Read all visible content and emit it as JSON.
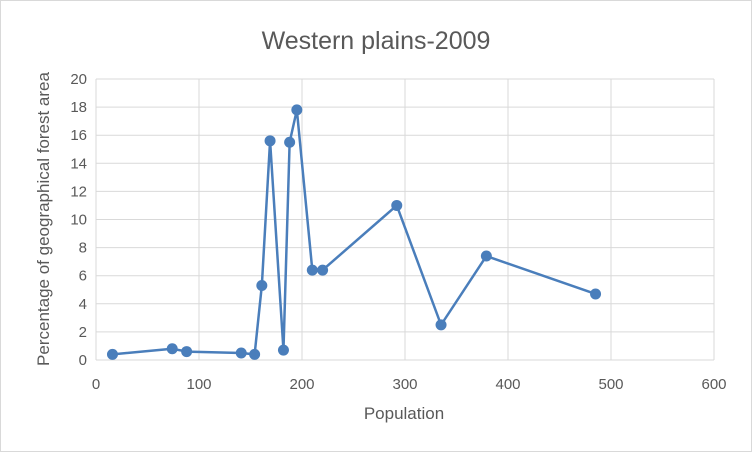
{
  "chart_data": {
    "type": "scatter",
    "title": "Western plains-2009",
    "xlabel": "Population",
    "ylabel": "Percentage of geographical forest area",
    "xlim": [
      0,
      600
    ],
    "ylim": [
      0,
      20
    ],
    "xticks": [
      "0",
      "100",
      "200",
      "300",
      "400",
      "500",
      "600"
    ],
    "yticks": [
      "0",
      "2",
      "4",
      "6",
      "8",
      "10",
      "12",
      "14",
      "16",
      "18",
      "20"
    ],
    "grid": true,
    "legend": "none",
    "colors": {
      "series": "#4a7ebb",
      "grid": "#d9d9d9",
      "text": "#595959"
    },
    "series": [
      {
        "x": [
          16,
          74,
          88,
          141,
          154,
          161,
          169,
          182,
          188,
          195,
          210,
          220,
          292,
          335,
          379,
          485
        ],
        "y": [
          0.4,
          0.8,
          0.6,
          0.5,
          0.4,
          5.3,
          15.6,
          0.7,
          15.5,
          17.8,
          6.4,
          6.4,
          11.0,
          2.5,
          7.4,
          4.7
        ]
      }
    ]
  }
}
